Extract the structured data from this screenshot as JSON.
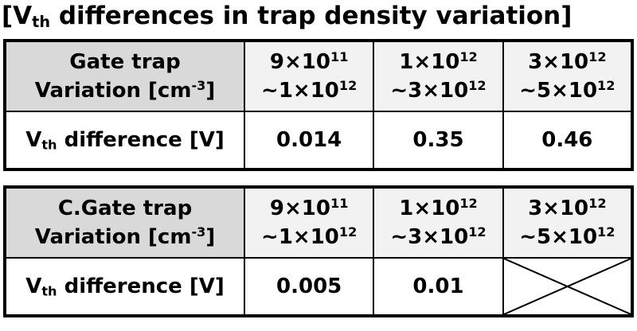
{
  "title": {
    "open": "[V",
    "sub": "th",
    "rest": " differences in trap density variation]"
  },
  "tables": [
    {
      "header_line1": "Gate trap",
      "header_line2_a": "Variation [cm",
      "header_line2_sup": "-3",
      "header_line2_b": "]",
      "ranges": [
        {
          "from_base": "9×10",
          "from_exp": "11",
          "to_base": "~1×10",
          "to_exp": "12"
        },
        {
          "from_base": "1×10",
          "from_exp": "12",
          "to_base": "~3×10",
          "to_exp": "12"
        },
        {
          "from_base": "3×10",
          "from_exp": "12",
          "to_base": "~5×10",
          "to_exp": "12"
        }
      ],
      "row_label_a": "V",
      "row_label_sub": "th",
      "row_label_b": " difference [V]",
      "values": [
        "0.014",
        "0.35",
        "0.46"
      ]
    },
    {
      "header_line1": "C.Gate trap",
      "header_line2_a": "Variation [cm",
      "header_line2_sup": "-3",
      "header_line2_b": "]",
      "ranges": [
        {
          "from_base": "9×10",
          "from_exp": "11",
          "to_base": "~1×10",
          "to_exp": "12"
        },
        {
          "from_base": "1×10",
          "from_exp": "12",
          "to_base": "~3×10",
          "to_exp": "12"
        },
        {
          "from_base": "3×10",
          "from_exp": "12",
          "to_base": "~5×10",
          "to_exp": "12"
        }
      ],
      "row_label_a": "V",
      "row_label_sub": "th",
      "row_label_b": " difference [V]",
      "values": [
        "0.005",
        "0.01",
        ""
      ]
    }
  ]
}
